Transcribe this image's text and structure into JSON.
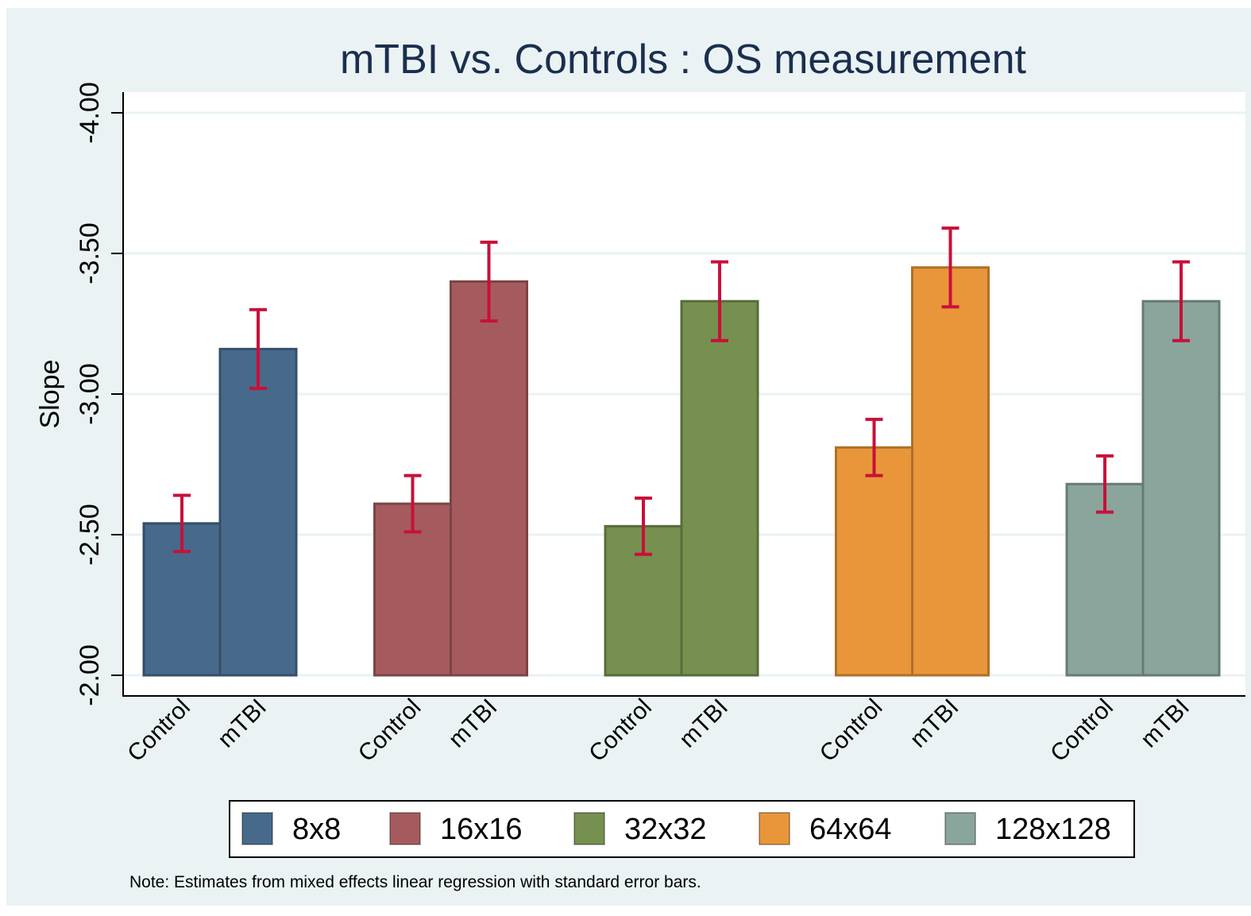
{
  "chart_data": {
    "type": "bar",
    "title": "mTBI vs. Controls : OS measurement",
    "y_label": "Slope",
    "note": "Note: Estimates from mixed effects linear regression with standard error bars.",
    "categories": [
      "Control",
      "mTBI"
    ],
    "series": [
      {
        "name": "8x8",
        "color": "#476a8b",
        "values": [
          -2.54,
          -3.16
        ],
        "errors": [
          0.1,
          0.14
        ]
      },
      {
        "name": "16x16",
        "color": "#a55b5d",
        "values": [
          -2.61,
          -3.4
        ],
        "errors": [
          0.1,
          0.14
        ]
      },
      {
        "name": "32x32",
        "color": "#76904f",
        "values": [
          -2.53,
          -3.33
        ],
        "errors": [
          0.1,
          0.14
        ]
      },
      {
        "name": "64x64",
        "color": "#e9963a",
        "values": [
          -2.81,
          -3.45
        ],
        "errors": [
          0.1,
          0.14
        ]
      },
      {
        "name": "128x128",
        "color": "#8aa59c",
        "values": [
          -2.68,
          -3.33
        ],
        "errors": [
          0.1,
          0.14
        ]
      }
    ],
    "error_color": "#c8103a",
    "ylim": [
      -2,
      -4
    ],
    "yticks": [
      {
        "value": -2,
        "label": "-2.00"
      },
      {
        "value": -2.5,
        "label": "-2.50"
      },
      {
        "value": -3,
        "label": "-3.00"
      },
      {
        "value": -3.5,
        "label": "-3.50"
      },
      {
        "value": -4,
        "label": "-4.00"
      }
    ],
    "grid": true,
    "legend": "bottom"
  }
}
